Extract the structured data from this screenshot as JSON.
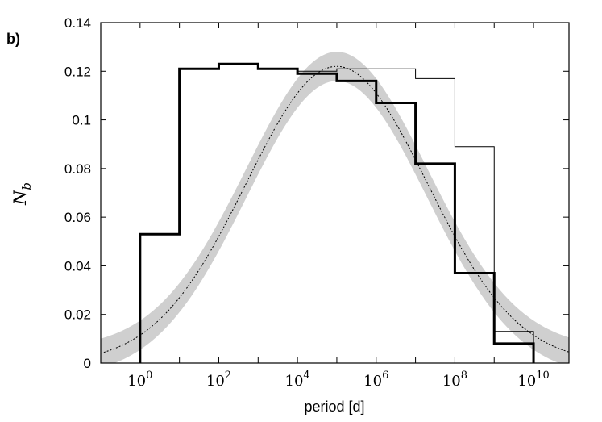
{
  "chart_data": {
    "type": "line",
    "panel_label": "b)",
    "xlabel": "period [d]",
    "ylabel": "N_b",
    "x_scale": "log10",
    "xlim_log10": [
      -1,
      10.9
    ],
    "ylim": [
      0,
      0.14
    ],
    "yticks": [
      0,
      0.02,
      0.04,
      0.06,
      0.08,
      0.1,
      0.12,
      0.14
    ],
    "ytick_labels": [
      "0",
      "0.02",
      "0.04",
      "0.06",
      "0.08",
      "0.1",
      "0.12",
      "0.14"
    ],
    "xticks_log10": [
      0,
      2,
      4,
      6,
      8,
      10
    ],
    "xtick_labels": [
      {
        "base": "10",
        "exp": "0"
      },
      {
        "base": "10",
        "exp": "2"
      },
      {
        "base": "10",
        "exp": "4"
      },
      {
        "base": "10",
        "exp": "6"
      },
      {
        "base": "10",
        "exp": "8"
      },
      {
        "base": "10",
        "exp": "10"
      }
    ],
    "grid": false,
    "legend": "none",
    "series": [
      {
        "style": "thick-step",
        "bin_edges_log10": [
          0,
          1,
          2,
          3,
          4,
          5,
          6,
          7,
          8,
          9,
          10
        ],
        "values": [
          0.053,
          0.121,
          0.123,
          0.121,
          0.119,
          0.116,
          0.107,
          0.082,
          0.037,
          0.008
        ]
      },
      {
        "style": "thin-step",
        "bin_edges_log10": [
          0,
          1,
          2,
          3,
          4,
          5,
          6,
          7,
          8,
          9,
          10
        ],
        "values": [
          0.053,
          0.121,
          0.123,
          0.121,
          0.12,
          0.121,
          0.121,
          0.117,
          0.089,
          0.013
        ]
      },
      {
        "style": "dotted-gaussian",
        "mean_log10": 5.0,
        "sigma_log10": 2.3,
        "peak": 0.122
      },
      {
        "style": "gray-band",
        "mean_log10": 5.0,
        "sigma_log10": 2.3,
        "peak": 0.122,
        "half_width": 0.006
      }
    ],
    "colors": {
      "band": "#cfcfcf",
      "lines": "#000000"
    }
  }
}
